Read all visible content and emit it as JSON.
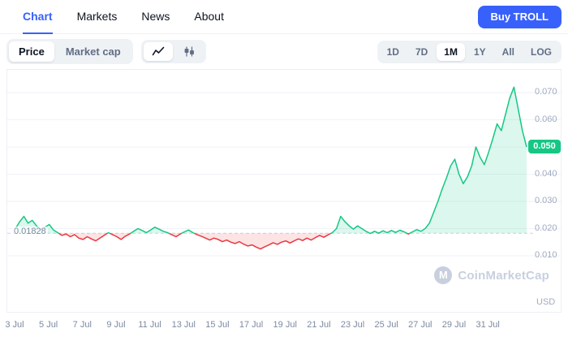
{
  "nav": {
    "tabs": [
      {
        "label": "Chart",
        "active": true
      },
      {
        "label": "Markets",
        "active": false
      },
      {
        "label": "News",
        "active": false
      },
      {
        "label": "About",
        "active": false
      }
    ],
    "buy_button": "Buy TROLL"
  },
  "toolbar": {
    "metric_toggle": [
      "Price",
      "Market cap"
    ],
    "chart_type_icons": [
      "line-chart-icon",
      "candlestick-chart-icon"
    ],
    "ranges": [
      {
        "label": "1D",
        "active": false
      },
      {
        "label": "7D",
        "active": false
      },
      {
        "label": "1M",
        "active": true
      },
      {
        "label": "1Y",
        "active": false
      },
      {
        "label": "All",
        "active": false
      },
      {
        "label": "LOG",
        "active": false
      }
    ]
  },
  "colors": {
    "accent_blue": "#3861fb",
    "green": "#16c784",
    "red": "#ea3943",
    "grid": "#f0f2f7",
    "baseline_line": "#cdd5e0"
  },
  "chart_data": {
    "type": "line",
    "title": "TROLL price chart, 1M range",
    "unit": "USD",
    "baseline": 0.01828,
    "baseline_label": "0.01828",
    "current": 0.05,
    "current_label": "0.050",
    "watermark": "CoinMarketCap",
    "watermark_initial": "M",
    "y_ticks": [
      0.07,
      0.06,
      0.05,
      0.04,
      0.03,
      0.02,
      0.01
    ],
    "x_ticks": [
      "3 Jul",
      "5 Jul",
      "7 Jul",
      "9 Jul",
      "11 Jul",
      "13 Jul",
      "15 Jul",
      "17 Jul",
      "19 Jul",
      "21 Jul",
      "23 Jul",
      "25 Jul",
      "27 Jul",
      "29 Jul",
      "31 Jul"
    ],
    "points_per_day": 4,
    "prices": [
      0.02,
      0.0225,
      0.0245,
      0.022,
      0.023,
      0.021,
      0.0195,
      0.0205,
      0.0215,
      0.0195,
      0.0185,
      0.0175,
      0.018,
      0.017,
      0.0178,
      0.0165,
      0.016,
      0.017,
      0.0162,
      0.0155,
      0.0165,
      0.0175,
      0.0185,
      0.0178,
      0.017,
      0.016,
      0.0172,
      0.018,
      0.019,
      0.02,
      0.0193,
      0.0185,
      0.0195,
      0.0205,
      0.0198,
      0.019,
      0.0185,
      0.0178,
      0.017,
      0.018,
      0.0188,
      0.0195,
      0.0185,
      0.0178,
      0.0172,
      0.0165,
      0.0158,
      0.0165,
      0.016,
      0.0152,
      0.0158,
      0.015,
      0.0145,
      0.0152,
      0.0143,
      0.0136,
      0.014,
      0.0132,
      0.0125,
      0.0133,
      0.014,
      0.0148,
      0.0142,
      0.015,
      0.0155,
      0.0147,
      0.0155,
      0.0162,
      0.0156,
      0.0165,
      0.0158,
      0.0167,
      0.0175,
      0.0168,
      0.0177,
      0.0185,
      0.02,
      0.0245,
      0.0225,
      0.021,
      0.0198,
      0.021,
      0.02,
      0.019,
      0.0182,
      0.019,
      0.0183,
      0.0192,
      0.0185,
      0.0193,
      0.0186,
      0.0194,
      0.0188,
      0.018,
      0.0188,
      0.0196,
      0.019,
      0.02,
      0.022,
      0.026,
      0.03,
      0.0345,
      0.0385,
      0.043,
      0.0455,
      0.04,
      0.0365,
      0.039,
      0.043,
      0.05,
      0.0462,
      0.0435,
      0.048,
      0.053,
      0.0585,
      0.056,
      0.062,
      0.068,
      0.072,
      0.064,
      0.056,
      0.05
    ]
  }
}
